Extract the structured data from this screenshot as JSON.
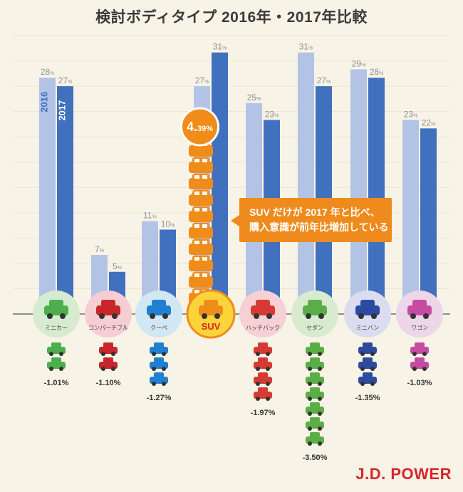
{
  "title": "検討ボディタイプ 2016年・2017年比較",
  "brand": "J.D. POWER",
  "colors": {
    "bar2016": "#b3c3e6",
    "bar2017": "#4170bf",
    "suv": "#f08c1a",
    "label2016": "#8d9094",
    "label2017": "#8d9094",
    "background": "#f7f3e6",
    "grid": "#ece5cf"
  },
  "callout": {
    "line1": "SUV だけが 2017 年と比べ、",
    "line2": "購入意識が前年比増加している"
  },
  "suv_badge": {
    "value": "4.",
    "decimals": "39%"
  },
  "chart_data": {
    "type": "bar",
    "title": "検討ボディタイプ 2016年・2017年比較",
    "y_unit": "%",
    "ylim": [
      0,
      33
    ],
    "categories": [
      "ミニカー",
      "コンパーチブル",
      "クーペ",
      "SUV",
      "ハッチバック",
      "セダン",
      "ミニバン",
      "ワゴン"
    ],
    "series": [
      {
        "name": "2016",
        "values": [
          28,
          7,
          11,
          27,
          25,
          31,
          29,
          23
        ]
      },
      {
        "name": "2017",
        "values": [
          27,
          5,
          10,
          31,
          23,
          27,
          28,
          22
        ]
      }
    ],
    "change_labels": [
      "-1.01%",
      "-1.10%",
      "-1.27%",
      "4.39%",
      "-1.97%",
      "-3.50%",
      "-1.35%",
      "-1.03%"
    ],
    "car_icon_counts": [
      2,
      2,
      3,
      11,
      4,
      7,
      3,
      2
    ],
    "circle_colors": [
      "#d6ebcf",
      "#f6cdd3",
      "#d2e7f4",
      "#fbd33a",
      "#f6d0d4",
      "#d8ebcf",
      "#dcdcf0",
      "#ecd6e8"
    ],
    "car_colors": [
      "#4cae4c",
      "#c8262b",
      "#1f7fd0",
      "#f08c1a",
      "#d63a33",
      "#5aae46",
      "#2c4ba0",
      "#c64ca2"
    ]
  }
}
